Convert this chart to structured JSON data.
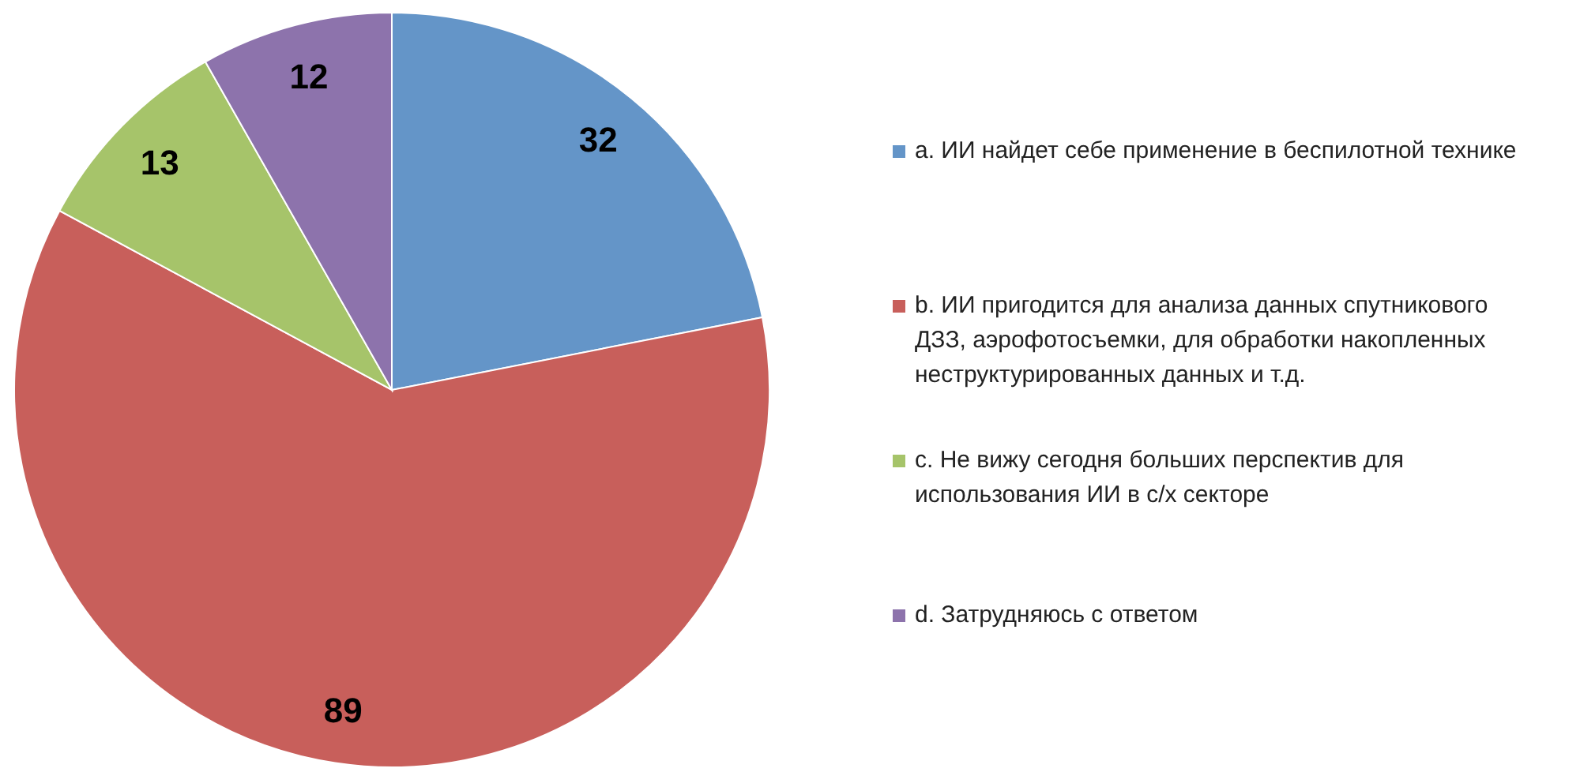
{
  "chart_data": {
    "type": "pie",
    "categories": [
      "a. ИИ найдет себе применение в беспилотной технике",
      "b. ИИ пригодится для анализа данных спутникового ДЗЗ, аэрофотосъемки, для обработки накопленных неструктурированных данных и т.д.",
      "c. Не вижу сегодня больших перспектив для использования ИИ в с/х секторе",
      "d. Затрудняюсь с ответом"
    ],
    "values": [
      32,
      89,
      13,
      12
    ],
    "colors": [
      "#6495c8",
      "#c85f5b",
      "#a6c46a",
      "#8d73ac"
    ],
    "data_labels": true,
    "legend": "right"
  }
}
